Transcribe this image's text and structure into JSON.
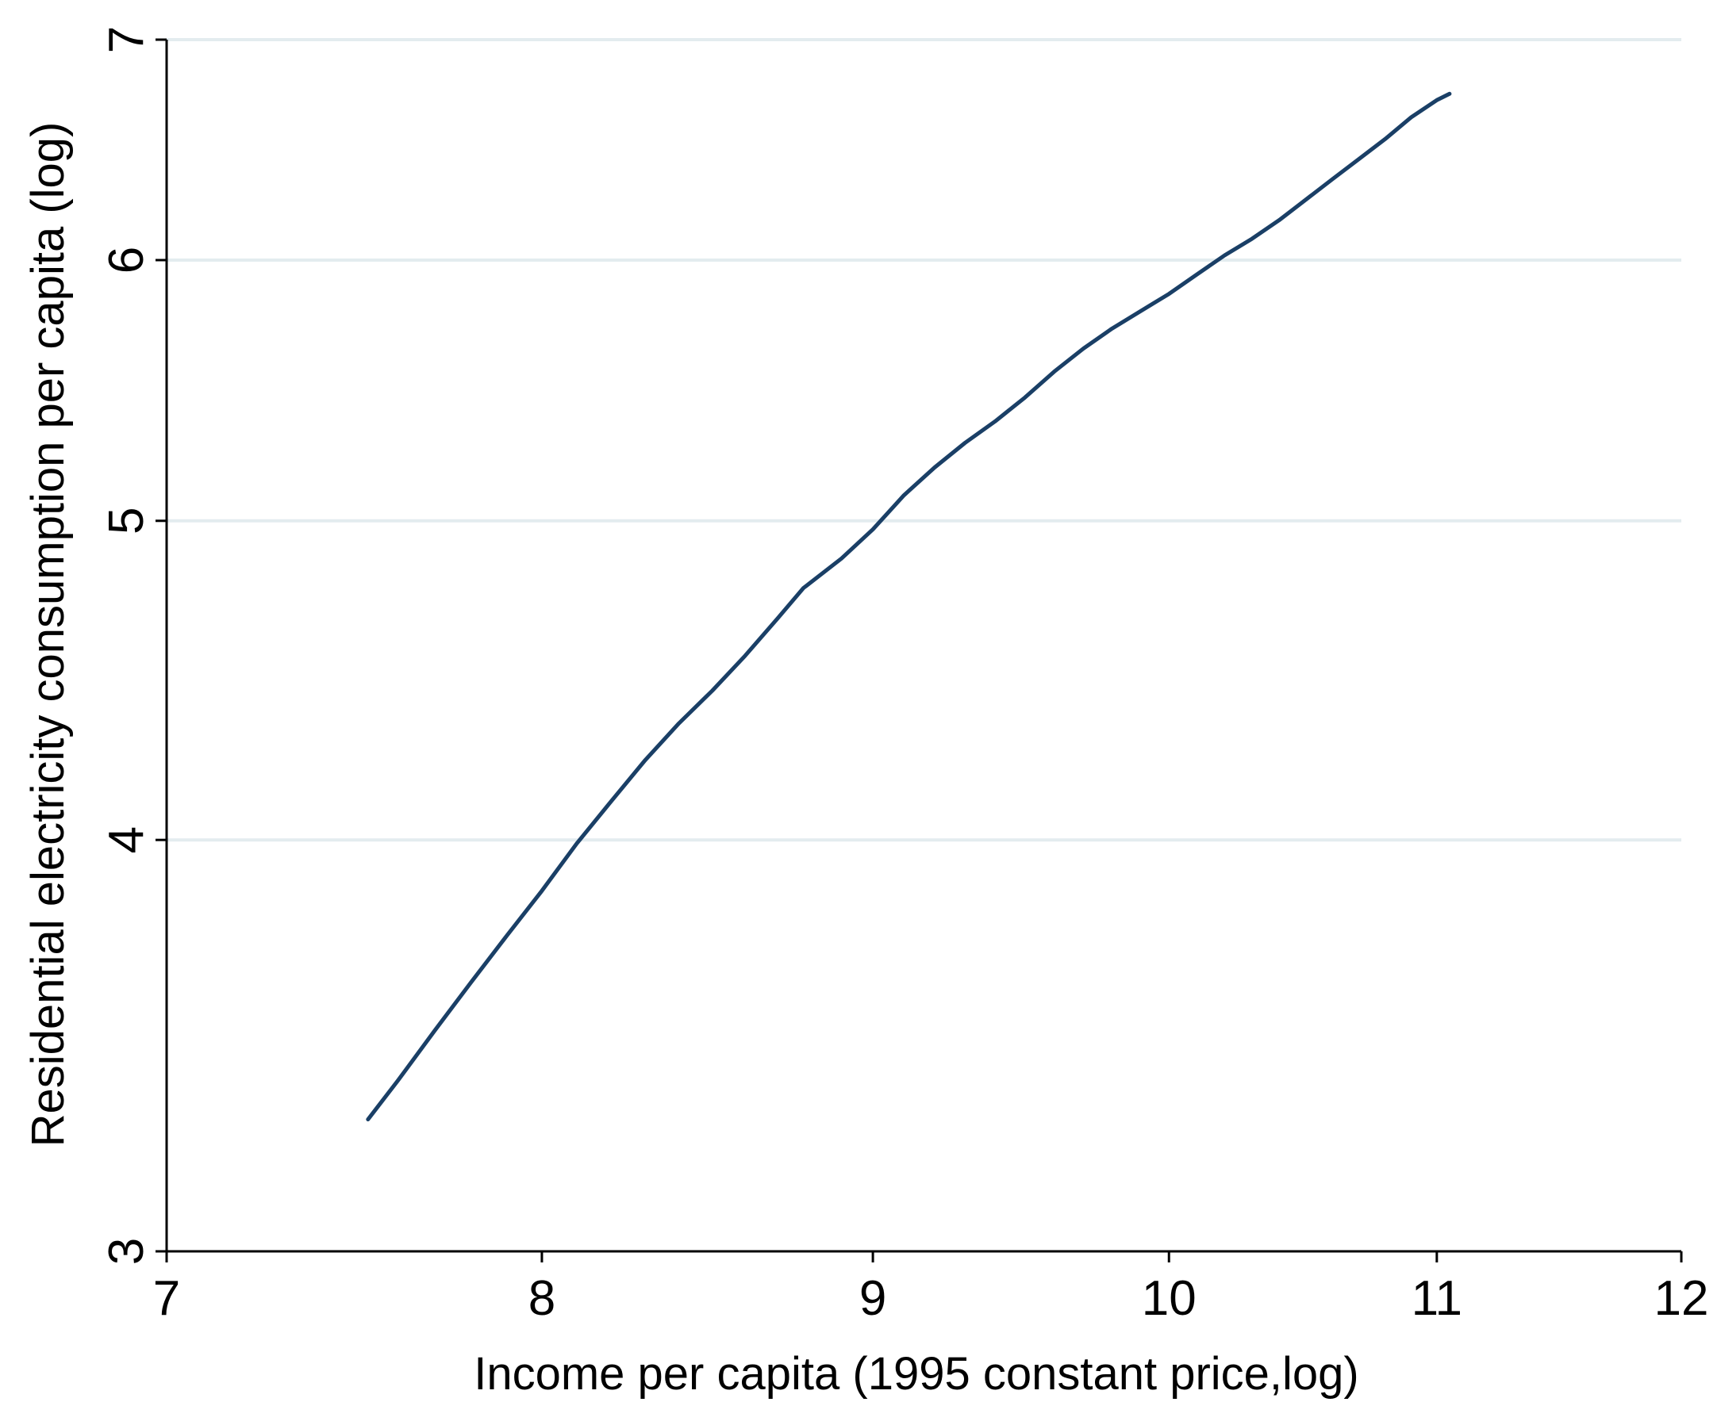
{
  "chart_data": {
    "type": "line",
    "title": "",
    "xlabel": "Income per capita (1995 constant price,log)",
    "ylabel": "Residential electricity consumption per capita (log)",
    "xlim": [
      7,
      12
    ],
    "ylim": [
      3,
      7
    ],
    "x_scale": "log",
    "y_scale": "log",
    "x_ticks": [
      "7",
      "8",
      "9",
      "10",
      "11",
      "12"
    ],
    "y_ticks": [
      "3",
      "4",
      "5",
      "6",
      "7"
    ],
    "grid": "horizontal",
    "legend": "none",
    "series": [
      {
        "color": "#1a3f66",
        "points": [
          [
            7.52,
            3.29
          ],
          [
            7.6,
            3.38
          ],
          [
            7.7,
            3.5
          ],
          [
            7.8,
            3.62
          ],
          [
            7.9,
            3.74
          ],
          [
            8.0,
            3.86
          ],
          [
            8.1,
            3.99
          ],
          [
            8.2,
            4.11
          ],
          [
            8.3,
            4.23
          ],
          [
            8.4,
            4.34
          ],
          [
            8.5,
            4.44
          ],
          [
            8.6,
            4.55
          ],
          [
            8.7,
            4.67
          ],
          [
            8.78,
            4.77
          ],
          [
            8.9,
            4.87
          ],
          [
            9.0,
            4.97
          ],
          [
            9.1,
            5.09
          ],
          [
            9.2,
            5.19
          ],
          [
            9.3,
            5.28
          ],
          [
            9.4,
            5.36
          ],
          [
            9.5,
            5.45
          ],
          [
            9.6,
            5.55
          ],
          [
            9.7,
            5.64
          ],
          [
            9.8,
            5.72
          ],
          [
            9.9,
            5.79
          ],
          [
            10.0,
            5.86
          ],
          [
            10.1,
            5.94
          ],
          [
            10.2,
            6.02
          ],
          [
            10.3,
            6.09
          ],
          [
            10.4,
            6.17
          ],
          [
            10.5,
            6.26
          ],
          [
            10.6,
            6.35
          ],
          [
            10.7,
            6.44
          ],
          [
            10.8,
            6.53
          ],
          [
            10.9,
            6.63
          ],
          [
            11.0,
            6.71
          ],
          [
            11.05,
            6.74
          ]
        ]
      }
    ]
  }
}
